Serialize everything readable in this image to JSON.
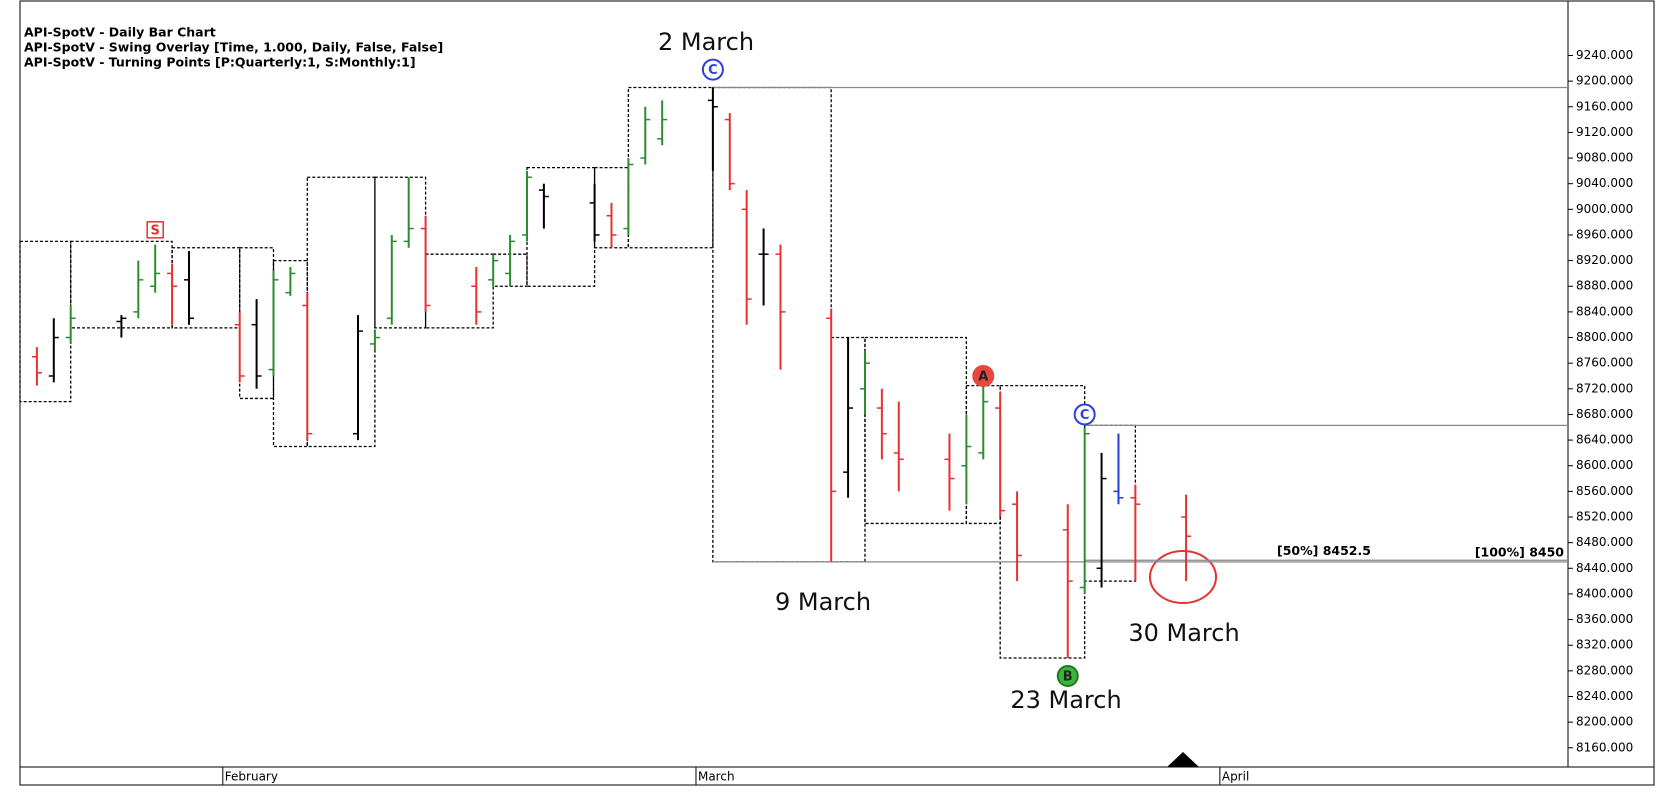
{
  "chart_data": {
    "type": "ohlc",
    "header": [
      "API-SpotV - Daily Bar Chart",
      "API-SpotV - Swing Overlay [Time, 1.000, Daily, False, False]",
      "API-SpotV - Turning Points [P:Quarterly:1, S:Monthly:1]"
    ],
    "x": [
      -11,
      -10,
      -9,
      -6,
      -5,
      -4,
      -3,
      -2,
      1,
      2,
      3,
      4,
      5,
      8,
      9,
      10,
      11,
      12,
      15,
      16,
      17,
      18,
      19,
      22,
      23,
      24,
      25,
      26,
      29,
      30,
      31,
      32,
      33,
      36,
      37,
      38,
      39,
      40,
      43,
      44,
      45,
      46,
      47,
      50,
      51,
      52,
      53,
      54,
      57
    ],
    "open": [
      8770,
      8740,
      8800,
      8825,
      8840,
      8880,
      8900,
      8890,
      8820,
      8820,
      8750,
      8870,
      8850,
      8650,
      8790,
      8830,
      8950,
      8970,
      8880,
      8890,
      8900,
      8960,
      9030,
      9010,
      8990,
      8970,
      9080,
      9110,
      9170,
      9140,
      9000,
      8930,
      8930,
      8830,
      8590,
      8720,
      8690,
      8620,
      8610,
      8600,
      8620,
      8690,
      8540,
      8500,
      8410,
      8440,
      8560,
      8550,
      8520
    ],
    "high": [
      8785,
      8830,
      8850,
      8835,
      8920,
      8945,
      8915,
      8935,
      8840,
      8860,
      8905,
      8910,
      8870,
      8835,
      8810,
      8960,
      9050,
      8990,
      8910,
      8930,
      8960,
      9060,
      9040,
      9040,
      9010,
      9080,
      9160,
      9170,
      9190,
      9150,
      9030,
      8970,
      8945,
      8845,
      8800,
      8780,
      8720,
      8700,
      8650,
      8680,
      8725,
      8715,
      8560,
      8540,
      8660,
      8620,
      8650,
      8570,
      8555
    ],
    "low": [
      8725,
      8730,
      8790,
      8800,
      8830,
      8870,
      8820,
      8820,
      8730,
      8720,
      8740,
      8865,
      8640,
      8640,
      8780,
      8820,
      8940,
      8840,
      8820,
      8880,
      8880,
      8950,
      8970,
      8950,
      8940,
      8960,
      9070,
      9100,
      9060,
      9030,
      8820,
      8850,
      8750,
      8450,
      8550,
      8680,
      8610,
      8560,
      8530,
      8540,
      8610,
      8520,
      8420,
      8300,
      8400,
      8410,
      8540,
      8420,
      8420
    ],
    "close": [
      8745,
      8800,
      8830,
      8830,
      8890,
      8900,
      8880,
      8830,
      8740,
      8740,
      8890,
      8900,
      8650,
      8810,
      8800,
      8950,
      8970,
      8850,
      8840,
      8920,
      8950,
      9050,
      9020,
      8960,
      8960,
      9070,
      9140,
      9140,
      9160,
      9040,
      8860,
      8930,
      8840,
      8560,
      8690,
      8760,
      8650,
      8610,
      8580,
      8630,
      8700,
      8530,
      8460,
      8420,
      8650,
      8580,
      8550,
      8540,
      8490
    ],
    "colors": [
      "#e8312f",
      "#000000",
      "#2e8b2e",
      "#000000",
      "#2e8b2e",
      "#2e8b2e",
      "#e8312f",
      "#000000",
      "#e8312f",
      "#000000",
      "#2e8b2e",
      "#2e8b2e",
      "#e8312f",
      "#000000",
      "#2e8b2e",
      "#2e8b2e",
      "#2e8b2e",
      "#e8312f",
      "#e8312f",
      "#2e8b2e",
      "#2e8b2e",
      "#2e8b2e",
      "#000000",
      "#000000",
      "#e8312f",
      "#2e8b2e",
      "#2e8b2e",
      "#2e8b2e",
      "#000000",
      "#e8312f",
      "#e8312f",
      "#000000",
      "#e8312f",
      "#e8312f",
      "#000000",
      "#2e8b2e",
      "#e8312f",
      "#e8312f",
      "#e8312f",
      "#2e8b2e",
      "#2e8b2e",
      "#e8312f",
      "#e8312f",
      "#e8312f",
      "#2e8b2e",
      "#000000",
      "#1f3fd6",
      "#e8312f",
      "#e8312f"
    ],
    "xlim": [
      -12,
      79.6
    ],
    "xticks": [
      {
        "value": 0,
        "label": "February"
      },
      {
        "value": 28,
        "label": "March"
      },
      {
        "value": 59,
        "label": "April"
      }
    ],
    "ylim": [
      8130,
      9325
    ],
    "yticks": [
      {
        "value": 8160,
        "label": "8160.000"
      },
      {
        "value": 8200,
        "label": "8200.000"
      },
      {
        "value": 8240,
        "label": "8240.000"
      },
      {
        "value": 8280,
        "label": "8280.000"
      },
      {
        "value": 8320,
        "label": "8320.000"
      },
      {
        "value": 8360,
        "label": "8360.000"
      },
      {
        "value": 8400,
        "label": "8400.000"
      },
      {
        "value": 8440,
        "label": "8440.000"
      },
      {
        "value": 8480,
        "label": "8480.000"
      },
      {
        "value": 8520,
        "label": "8520.000"
      },
      {
        "value": 8560,
        "label": "8560.000"
      },
      {
        "value": 8600,
        "label": "8600.000"
      },
      {
        "value": 8640,
        "label": "8640.000"
      },
      {
        "value": 8680,
        "label": "8680.000"
      },
      {
        "value": 8720,
        "label": "8720.000"
      },
      {
        "value": 8760,
        "label": "8760.000"
      },
      {
        "value": 8800,
        "label": "8800.000"
      },
      {
        "value": 8840,
        "label": "8840.000"
      },
      {
        "value": 8880,
        "label": "8880.000"
      },
      {
        "value": 8920,
        "label": "8920.000"
      },
      {
        "value": 8960,
        "label": "8960.000"
      },
      {
        "value": 9000,
        "label": "9000.000"
      },
      {
        "value": 9040,
        "label": "9040.000"
      },
      {
        "value": 9080,
        "label": "9080.000"
      },
      {
        "value": 9120,
        "label": "9120.000"
      },
      {
        "value": 9160,
        "label": "9160.000"
      },
      {
        "value": 9200,
        "label": "9200.000"
      },
      {
        "value": 9240,
        "label": "9240.000"
      }
    ],
    "swings": [
      [
        -12,
        -9,
        8700,
        8950
      ],
      [
        -9,
        -3,
        8815,
        8950
      ],
      [
        -3,
        1,
        8815,
        8940
      ],
      [
        1,
        3,
        8705,
        8940
      ],
      [
        3,
        5,
        8630,
        8920
      ],
      [
        5,
        9,
        8630,
        9050
      ],
      [
        9,
        12,
        8815,
        9050
      ],
      [
        12,
        16,
        8815,
        8930
      ],
      [
        16,
        18,
        8880,
        8930
      ],
      [
        18,
        22,
        8880,
        9065
      ],
      [
        22,
        24,
        8940,
        9065
      ],
      [
        24,
        29,
        8940,
        9190
      ],
      [
        29,
        36,
        8450,
        9190
      ],
      [
        36,
        38,
        8450,
        8800
      ],
      [
        38,
        44,
        8510,
        8800
      ],
      [
        44,
        46,
        8510,
        8725
      ],
      [
        46,
        51,
        8300,
        8725
      ],
      [
        51,
        54,
        8420,
        8663
      ]
    ],
    "levels": [
      {
        "value": 9190,
        "from": 29
      },
      {
        "value": 8663,
        "from": 51
      },
      {
        "value": 8452.5,
        "from": 51,
        "label": "[50%] 8452.5"
      },
      {
        "value": 8450,
        "from": 29,
        "label": "[100%] 8450"
      }
    ],
    "markers": [
      {
        "label": "C",
        "x": 29,
        "y": 9218,
        "color": "#2a40e0"
      },
      {
        "label": "S",
        "x": -4,
        "y": 8968,
        "color": "#e8312f"
      },
      {
        "label": "A",
        "x": 45,
        "y": 8740,
        "color": "#e8473f"
      },
      {
        "label": "B",
        "x": 50,
        "y": 8272,
        "color": "#3cb43c"
      },
      {
        "label": "C",
        "x": 51,
        "y": 8680,
        "color": "#2a40e0"
      }
    ],
    "annotations": [
      "2 March",
      "9 March",
      "23 March",
      "30 March"
    ]
  }
}
